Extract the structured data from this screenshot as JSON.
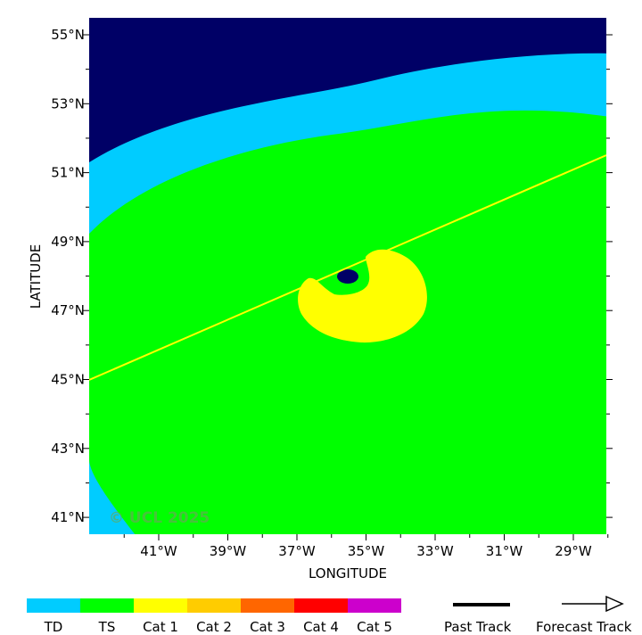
{
  "map": {
    "axes": {
      "xlabel": "LONGITUDE",
      "ylabel": "LATITUDE",
      "x_ticks": [
        "41°W",
        "39°W",
        "37°W",
        "35°W",
        "33°W",
        "31°W",
        "29°W"
      ],
      "y_ticks": [
        "55°N",
        "53°N",
        "51°N",
        "49°N",
        "47°N",
        "45°N",
        "43°N",
        "41°N"
      ]
    },
    "watermark": "© UCL 2025",
    "colors": {
      "outside": "#000066",
      "td": "#00ccff",
      "ts": "#00ff00",
      "cat1": "#ffff00",
      "track": "#ffff00"
    }
  },
  "legend": {
    "categories": [
      {
        "label": "TD",
        "color": "#00ccff"
      },
      {
        "label": "TS",
        "color": "#00ff00"
      },
      {
        "label": "Cat 1",
        "color": "#ffff00"
      },
      {
        "label": "Cat 2",
        "color": "#ffcc00"
      },
      {
        "label": "Cat 3",
        "color": "#ff6600"
      },
      {
        "label": "Cat 4",
        "color": "#ff0000"
      },
      {
        "label": "Cat 5",
        "color": "#cc00cc"
      }
    ],
    "past_track_label": "Past Track",
    "forecast_track_label": "Forecast Track"
  }
}
